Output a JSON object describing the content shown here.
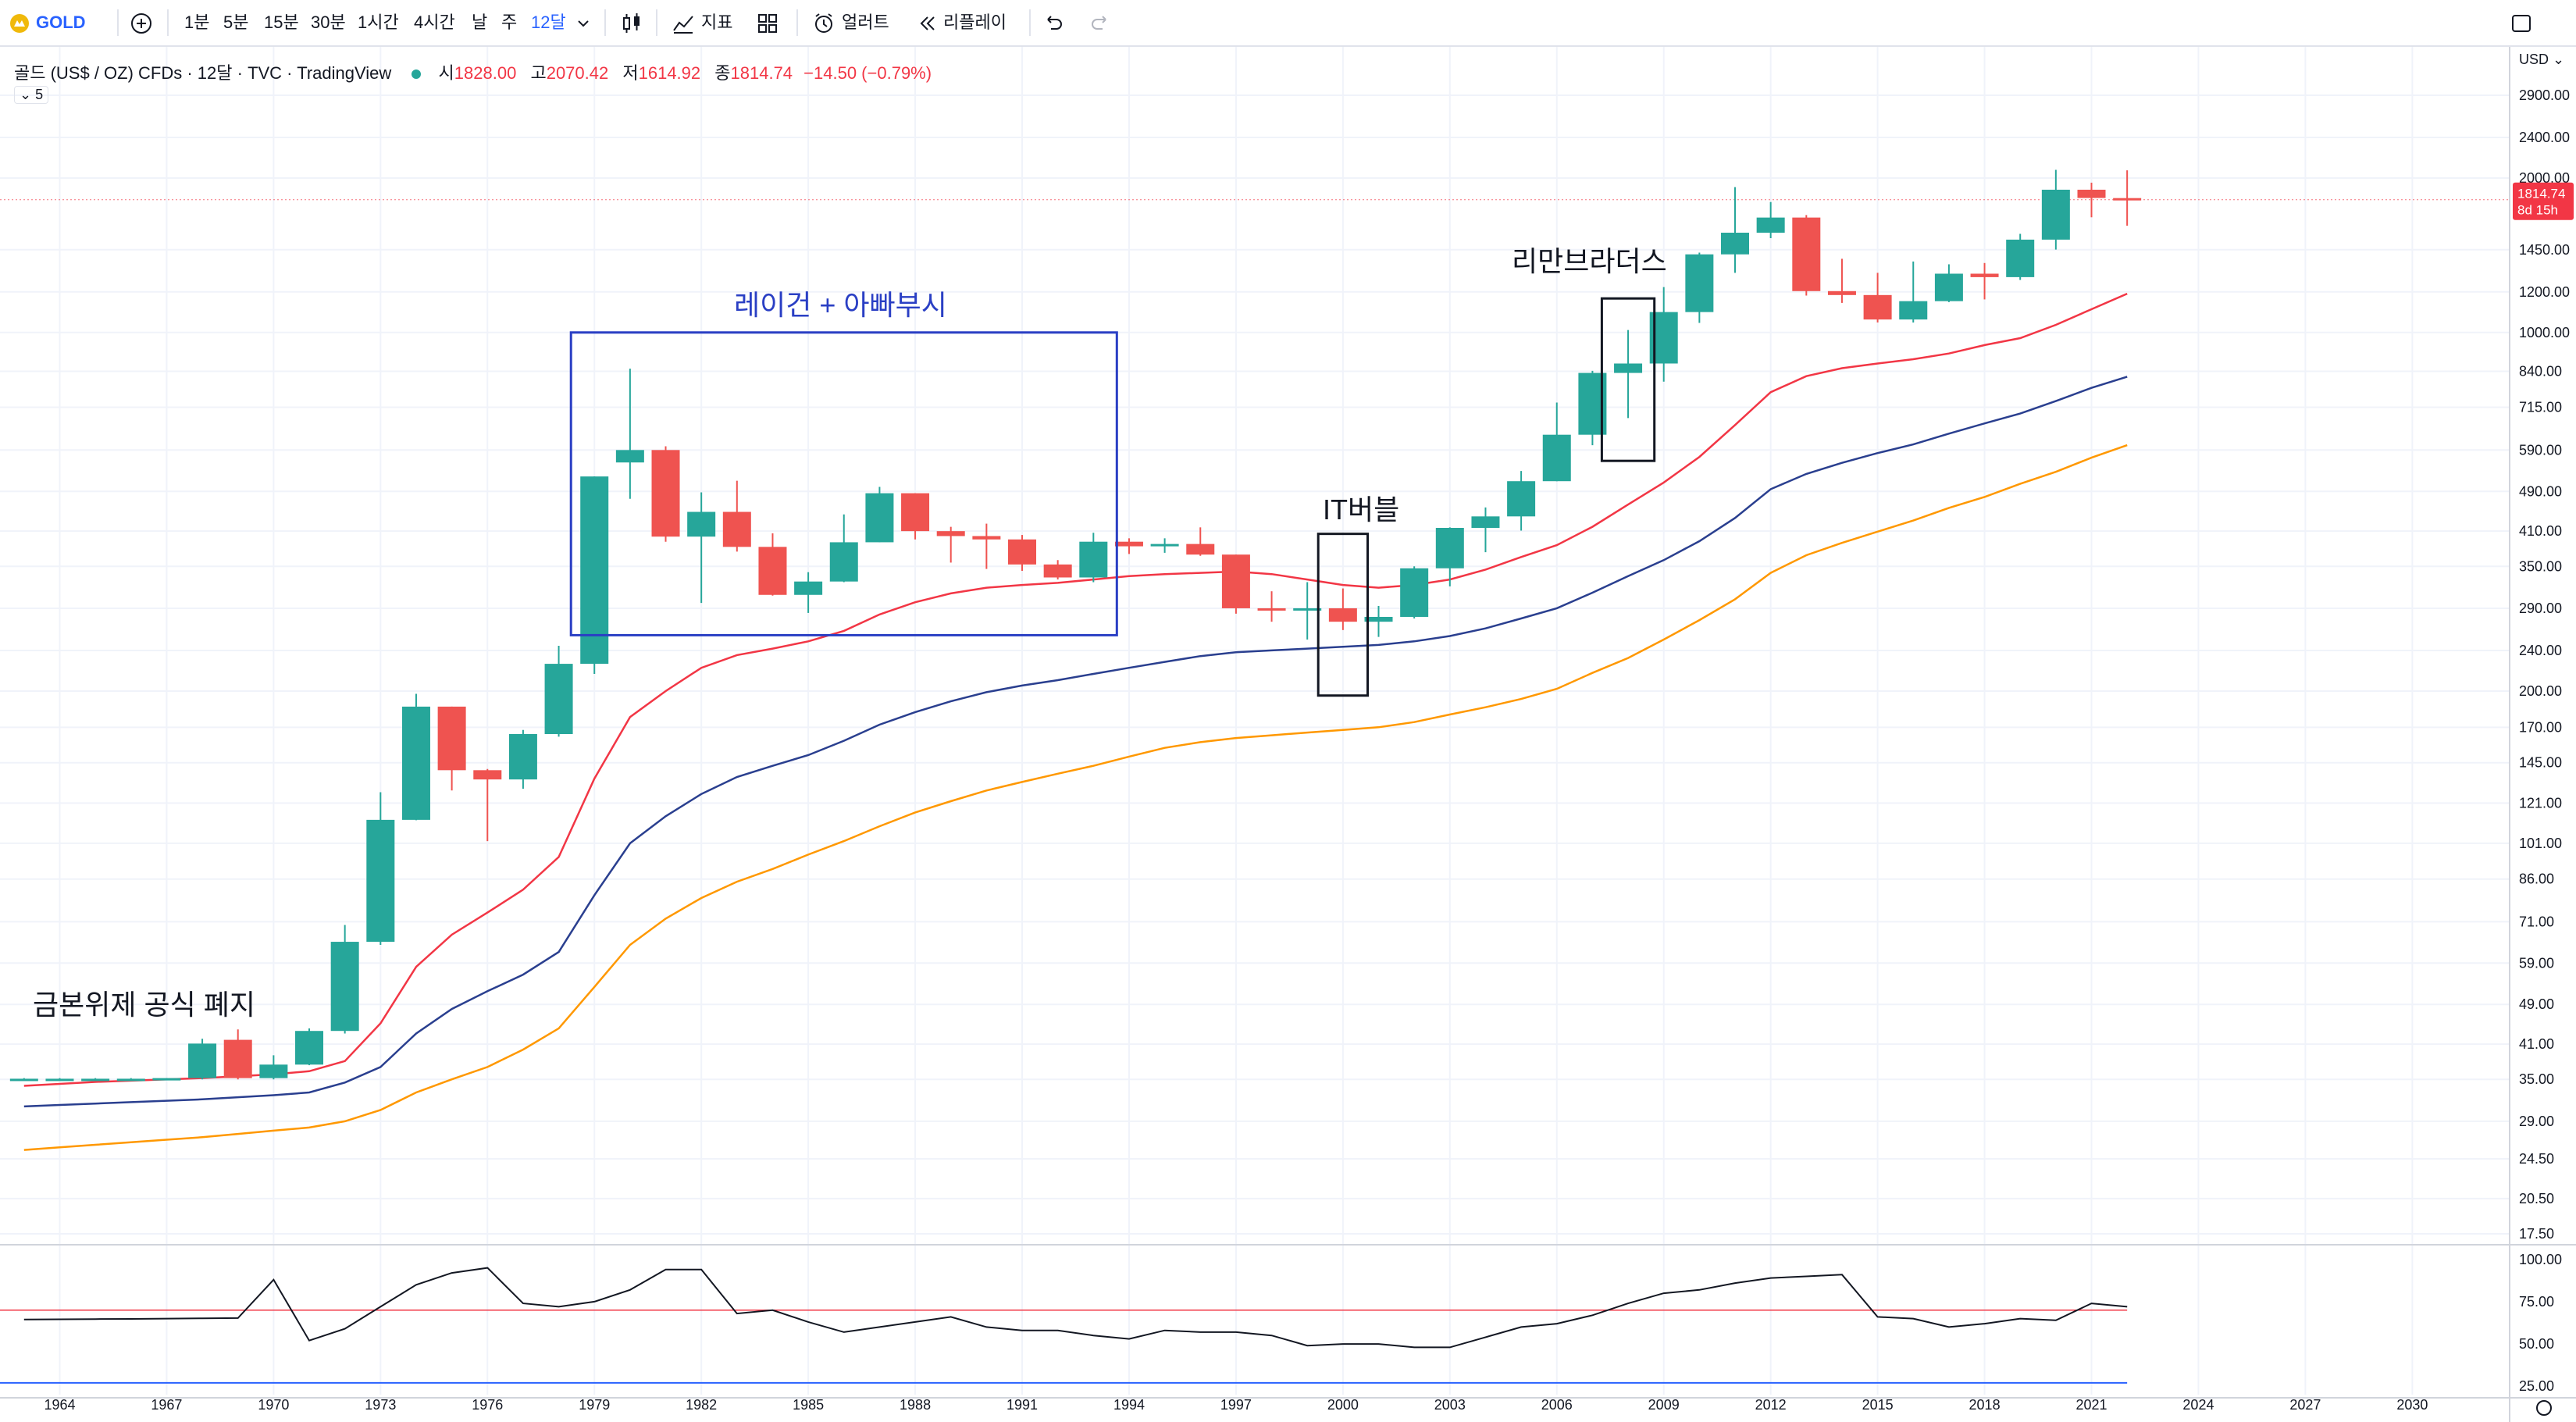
{
  "toolbar": {
    "symbol": "GOLD",
    "intervals": [
      "1분",
      "5분",
      "15분",
      "30분",
      "1시간",
      "4시간",
      "날",
      "주",
      "12달"
    ],
    "active_interval": "12달",
    "indicators_label": "지표",
    "alerts_label": "얼러트",
    "replay_label": "리플레이",
    "icons": [
      "gold-logo-icon",
      "add-symbol-icon",
      "chevron-down-icon",
      "candle-type-icon",
      "indicators-icon",
      "layout-icon",
      "alert-icon",
      "replay-icon",
      "undo-icon",
      "redo-icon",
      "fullscreen-icon"
    ]
  },
  "legend": {
    "title": "골드 (US$ / OZ) CFDs · 12달 · TVC · TradingView",
    "open_label": "시",
    "open": "1828.00",
    "high_label": "고",
    "high": "2070.42",
    "low_label": "저",
    "low": "1614.92",
    "close_label": "종",
    "close": "1814.74",
    "change": "−14.50 (−0.79%)",
    "collapsed_count": "5"
  },
  "price_axis": {
    "currency": "USD",
    "ticks": [
      "2900.00",
      "2400.00",
      "2000.00",
      "1450.00",
      "1200.00",
      "1000.00",
      "840.00",
      "715.00",
      "590.00",
      "490.00",
      "410.00",
      "350.00",
      "290.00",
      "240.00",
      "200.00",
      "170.00",
      "145.00",
      "121.00",
      "101.00",
      "86.00",
      "71.00",
      "59.00",
      "49.00",
      "41.00",
      "35.00",
      "29.00",
      "24.50",
      "20.50",
      "17.50"
    ],
    "last_price": "1814.74",
    "countdown": "8d 15h"
  },
  "osc_axis": {
    "ticks": [
      "100.00",
      "75.00",
      "50.00",
      "25.00"
    ]
  },
  "time_axis": {
    "ticks": [
      "1964",
      "1967",
      "1970",
      "1973",
      "1976",
      "1979",
      "1982",
      "1985",
      "1988",
      "1991",
      "1994",
      "1997",
      "2000",
      "2003",
      "2006",
      "2009",
      "2012",
      "2015",
      "2018",
      "2021",
      "2024",
      "2027",
      "2030"
    ]
  },
  "annotations": {
    "gold_standard": "금본위제 공식 폐지",
    "reagan": "레이건 + 아빠부시",
    "it_bubble": "IT버블",
    "lehman": "리만브라더스"
  },
  "colors": {
    "up": "#26a69a",
    "down": "#ef5350",
    "ma1": "#f23645",
    "ma2": "#2a3f8f",
    "ma3": "#ff9800",
    "accent": "#2962ff",
    "rsi": "#131722",
    "rsi_level": "#f23645"
  },
  "chart_data": {
    "type": "candlestick",
    "title": "골드 (US$ / OZ) CFDs · 12달 · TVC · TradingView",
    "x": [
      1963,
      1964,
      1965,
      1966,
      1967,
      1968,
      1969,
      1970,
      1971,
      1972,
      1973,
      1974,
      1975,
      1976,
      1977,
      1978,
      1979,
      1980,
      1981,
      1982,
      1983,
      1984,
      1985,
      1986,
      1987,
      1988,
      1989,
      1990,
      1991,
      1992,
      1993,
      1994,
      1995,
      1996,
      1997,
      1998,
      1999,
      2000,
      2001,
      2002,
      2003,
      2004,
      2005,
      2006,
      2007,
      2008,
      2009,
      2010,
      2011,
      2012,
      2013,
      2014,
      2015,
      2016,
      2017,
      2018,
      2019,
      2020,
      2021,
      2022
    ],
    "candles": [
      {
        "o": 35.1,
        "h": 35.2,
        "l": 35.0,
        "c": 35.1
      },
      {
        "o": 35.1,
        "h": 35.2,
        "l": 35.0,
        "c": 35.1
      },
      {
        "o": 35.1,
        "h": 35.2,
        "l": 35.0,
        "c": 35.1
      },
      {
        "o": 35.1,
        "h": 35.2,
        "l": 35.0,
        "c": 35.1
      },
      {
        "o": 35.1,
        "h": 35.2,
        "l": 35.0,
        "c": 35.2
      },
      {
        "o": 35.2,
        "h": 42.0,
        "l": 35.0,
        "c": 41.1
      },
      {
        "o": 41.8,
        "h": 43.8,
        "l": 35.0,
        "c": 35.2
      },
      {
        "o": 35.2,
        "h": 39.0,
        "l": 35.0,
        "c": 37.4
      },
      {
        "o": 37.4,
        "h": 44.0,
        "l": 37.3,
        "c": 43.5
      },
      {
        "o": 43.5,
        "h": 70.0,
        "l": 43.0,
        "c": 64.9
      },
      {
        "o": 64.9,
        "h": 127.0,
        "l": 64.0,
        "c": 112.2
      },
      {
        "o": 112.2,
        "h": 197.5,
        "l": 112.0,
        "c": 186.5
      },
      {
        "o": 186.5,
        "h": 186.5,
        "l": 128.0,
        "c": 140.2
      },
      {
        "o": 140.2,
        "h": 141.0,
        "l": 102.0,
        "c": 134.5
      },
      {
        "o": 134.5,
        "h": 168.0,
        "l": 129.0,
        "c": 164.9
      },
      {
        "o": 164.9,
        "h": 245.0,
        "l": 163.0,
        "c": 226.0
      },
      {
        "o": 226.0,
        "h": 524.0,
        "l": 216.0,
        "c": 524.0
      },
      {
        "o": 558.0,
        "h": 850.0,
        "l": 474.0,
        "c": 590.0
      },
      {
        "o": 590.0,
        "h": 600.0,
        "l": 391.0,
        "c": 400.0
      },
      {
        "o": 400.0,
        "h": 488.0,
        "l": 297.0,
        "c": 447.0
      },
      {
        "o": 447.0,
        "h": 514.0,
        "l": 374.0,
        "c": 382.0
      },
      {
        "o": 382.0,
        "h": 406.0,
        "l": 307.0,
        "c": 308.0
      },
      {
        "o": 308.0,
        "h": 341.0,
        "l": 284.0,
        "c": 327.0
      },
      {
        "o": 327.0,
        "h": 442.0,
        "l": 326.0,
        "c": 390.0
      },
      {
        "o": 390.0,
        "h": 500.0,
        "l": 390.0,
        "c": 486.0
      },
      {
        "o": 486.0,
        "h": 486.0,
        "l": 395.0,
        "c": 410.0
      },
      {
        "o": 410.0,
        "h": 418.0,
        "l": 356.0,
        "c": 401.0
      },
      {
        "o": 401.0,
        "h": 424.0,
        "l": 346.0,
        "c": 395.0
      },
      {
        "o": 395.0,
        "h": 403.0,
        "l": 343.0,
        "c": 353.0
      },
      {
        "o": 353.0,
        "h": 360.0,
        "l": 330.0,
        "c": 333.0
      },
      {
        "o": 333.0,
        "h": 407.0,
        "l": 326.0,
        "c": 391.0
      },
      {
        "o": 391.0,
        "h": 397.0,
        "l": 370.0,
        "c": 383.0
      },
      {
        "o": 383.0,
        "h": 397.0,
        "l": 372.0,
        "c": 387.0
      },
      {
        "o": 387.0,
        "h": 417.0,
        "l": 367.0,
        "c": 369.0
      },
      {
        "o": 369.0,
        "h": 369.0,
        "l": 283.0,
        "c": 290.0
      },
      {
        "o": 290.0,
        "h": 313.0,
        "l": 273.0,
        "c": 288.0
      },
      {
        "o": 288.0,
        "h": 326.0,
        "l": 252.0,
        "c": 290.0
      },
      {
        "o": 290.0,
        "h": 317.0,
        "l": 263.0,
        "c": 273.0
      },
      {
        "o": 273.0,
        "h": 293.0,
        "l": 255.0,
        "c": 279.0
      },
      {
        "o": 279.0,
        "h": 350.0,
        "l": 277.0,
        "c": 347.0
      },
      {
        "o": 347.0,
        "h": 417.0,
        "l": 320.0,
        "c": 416.0
      },
      {
        "o": 416.0,
        "h": 456.0,
        "l": 373.0,
        "c": 438.0
      },
      {
        "o": 438.0,
        "h": 537.0,
        "l": 411.0,
        "c": 513.0
      },
      {
        "o": 513.0,
        "h": 730.0,
        "l": 513.0,
        "c": 632.0
      },
      {
        "o": 632.0,
        "h": 842.0,
        "l": 603.0,
        "c": 834.0
      },
      {
        "o": 834.0,
        "h": 1011.0,
        "l": 681.0,
        "c": 870.0
      },
      {
        "o": 870.0,
        "h": 1226.0,
        "l": 802.0,
        "c": 1096.0
      },
      {
        "o": 1096.0,
        "h": 1431.0,
        "l": 1044.0,
        "c": 1420.0
      },
      {
        "o": 1420.0,
        "h": 1920.0,
        "l": 1307.0,
        "c": 1565.0
      },
      {
        "o": 1565.0,
        "h": 1796.0,
        "l": 1527.0,
        "c": 1675.0
      },
      {
        "o": 1675.0,
        "h": 1694.0,
        "l": 1180.0,
        "c": 1204.0
      },
      {
        "o": 1204.0,
        "h": 1392.0,
        "l": 1142.0,
        "c": 1183.0
      },
      {
        "o": 1183.0,
        "h": 1307.0,
        "l": 1046.0,
        "c": 1060.0
      },
      {
        "o": 1060.0,
        "h": 1375.0,
        "l": 1046.0,
        "c": 1151.0
      },
      {
        "o": 1151.0,
        "h": 1358.0,
        "l": 1146.0,
        "c": 1302.0
      },
      {
        "o": 1302.0,
        "h": 1366.0,
        "l": 1160.0,
        "c": 1282.0
      },
      {
        "o": 1282.0,
        "h": 1557.0,
        "l": 1266.0,
        "c": 1517.0
      },
      {
        "o": 1517.0,
        "h": 2075.0,
        "l": 1451.0,
        "c": 1898.0
      },
      {
        "o": 1898.0,
        "h": 1959.0,
        "l": 1677.0,
        "c": 1829.0
      },
      {
        "o": 1828.0,
        "h": 2070.42,
        "l": 1614.92,
        "c": 1814.74
      }
    ],
    "ma_series": [
      {
        "values": [
          34,
          34.3,
          34.6,
          34.8,
          35,
          35.2,
          35.5,
          35.8,
          36.3,
          38,
          45,
          58,
          67,
          74,
          82,
          95,
          135,
          178,
          200,
          222,
          235,
          242,
          250,
          262,
          282,
          298,
          310,
          318,
          322,
          325,
          330,
          335,
          338,
          340,
          342,
          338,
          330,
          322,
          318,
          322,
          330,
          345,
          365,
          385,
          418,
          462,
          510,
          572,
          660,
          765,
          822,
          852,
          870,
          887,
          910,
          945,
          975,
          1035,
          1110,
          1190
        ]
      },
      {
        "values": [
          31,
          31.2,
          31.4,
          31.6,
          31.8,
          32,
          32.3,
          32.6,
          33,
          34.5,
          37,
          43,
          48,
          52,
          56,
          62,
          80,
          101,
          114,
          126,
          136,
          143,
          150,
          160,
          172,
          182,
          191,
          199,
          205,
          210,
          216,
          222,
          228,
          234,
          238,
          240,
          242,
          244,
          246,
          250,
          256,
          265,
          277,
          290,
          311,
          335,
          360,
          392,
          435,
          495,
          530,
          557,
          582,
          605,
          635,
          665,
          695,
          735,
          780,
          820
        ]
      },
      {
        "values": [
          25.5,
          25.8,
          26.1,
          26.4,
          26.7,
          27,
          27.4,
          27.8,
          28.2,
          29,
          30.5,
          33,
          35,
          37,
          40,
          44,
          53,
          64,
          72,
          79,
          85,
          90,
          96,
          102,
          109,
          116,
          122,
          128,
          133,
          138,
          143,
          149,
          155,
          159,
          162,
          164,
          166,
          168,
          170,
          174,
          180,
          186,
          193,
          202,
          217,
          232,
          252,
          275,
          302,
          340,
          368,
          389,
          409,
          430,
          455,
          478,
          507,
          535,
          570,
          603
        ]
      }
    ],
    "rsi": {
      "values": [
        64.5,
        64.6,
        64.7,
        64.8,
        65,
        65.2,
        65.3,
        88,
        52,
        59,
        72,
        85,
        92,
        95,
        74,
        72,
        75,
        82,
        94,
        94,
        68,
        70,
        63,
        57,
        60,
        63,
        66,
        60,
        58,
        58,
        55,
        53,
        58,
        57,
        57,
        55,
        49,
        50,
        50,
        48,
        48,
        54,
        60,
        62,
        67,
        74,
        80,
        82,
        86,
        89,
        90,
        91,
        66,
        65,
        60,
        62,
        65,
        64,
        74,
        72
      ],
      "level": 70,
      "lower_band": 27,
      "ylim": [
        20,
        105
      ]
    },
    "ylim": [
      17.5,
      2900
    ],
    "yscale": "log",
    "xlim": [
      1962.5,
      2031
    ]
  }
}
